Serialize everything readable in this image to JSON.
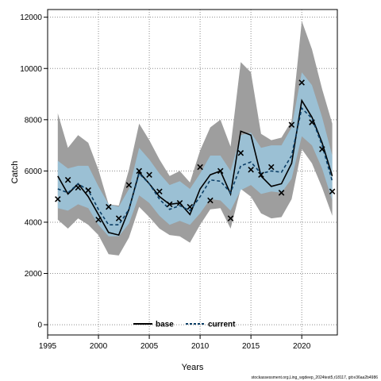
{
  "chart_data": {
    "type": "line",
    "xlabel": "Years",
    "ylabel": "Catch",
    "xlim": [
      1995,
      2023.5
    ],
    "ylim": [
      -400,
      12300
    ],
    "x_ticks": [
      1995,
      2000,
      2005,
      2010,
      2015,
      2020
    ],
    "y_ticks": [
      0,
      2000,
      4000,
      6000,
      8000,
      10000,
      12000
    ],
    "grid": true,
    "legend_position": "bottom-center",
    "years": [
      1996,
      1997,
      1998,
      1999,
      2000,
      2001,
      2002,
      2003,
      2004,
      2005,
      2006,
      2007,
      2008,
      2009,
      2010,
      2011,
      2012,
      2013,
      2014,
      2015,
      2016,
      2017,
      2018,
      2019,
      2020,
      2021,
      2022,
      2023
    ],
    "observed": [
      4900,
      5650,
      5350,
      5250,
      4100,
      4600,
      4150,
      5450,
      6000,
      5850,
      5200,
      4700,
      4750,
      4600,
      6150,
      4850,
      6000,
      4150,
      6700,
      6050,
      5850,
      6150,
      5150,
      7800,
      9450,
      7900,
      6850,
      5200
    ],
    "series": [
      {
        "name": "base",
        "color": "#000000",
        "dash": "solid",
        "band_color": "#9e9e9e",
        "values": [
          5800,
          5100,
          5500,
          5000,
          4300,
          3600,
          3500,
          4500,
          5950,
          5500,
          5000,
          4700,
          4750,
          4300,
          5300,
          5850,
          6000,
          5100,
          7550,
          7400,
          5800,
          5400,
          5500,
          6300,
          8750,
          8100,
          7100,
          5800
        ],
        "lower": [
          4100,
          3750,
          4150,
          3900,
          3500,
          2750,
          2700,
          3400,
          4600,
          4200,
          3750,
          3500,
          3450,
          3200,
          3900,
          4500,
          4550,
          3750,
          5300,
          5000,
          4350,
          4150,
          4200,
          4900,
          6850,
          6300,
          5350,
          4250
        ],
        "upper": [
          8250,
          6900,
          7400,
          7100,
          6050,
          4700,
          4650,
          6050,
          7850,
          7200,
          6450,
          5800,
          6000,
          5550,
          6800,
          7700,
          8000,
          6950,
          10250,
          9850,
          7450,
          7200,
          7300,
          7950,
          11850,
          10750,
          9200,
          7850
        ]
      },
      {
        "name": "current",
        "color": "#0b3e66",
        "dash": "dashed",
        "band_color": "#99cbe6",
        "values": [
          5300,
          5150,
          5500,
          5250,
          4500,
          3900,
          3900,
          4500,
          5900,
          5500,
          4900,
          4500,
          4650,
          4450,
          5000,
          5650,
          5600,
          5150,
          6200,
          6350,
          5900,
          6000,
          5950,
          6600,
          8450,
          8050,
          7000,
          5600
        ],
        "lower": [
          4550,
          4450,
          4700,
          4550,
          3900,
          3450,
          3450,
          3950,
          5050,
          4750,
          4250,
          3900,
          4050,
          3900,
          4350,
          4900,
          4850,
          4450,
          5250,
          5450,
          5100,
          5200,
          5150,
          5700,
          7350,
          7000,
          6100,
          4850
        ],
        "upper": [
          6400,
          6100,
          6200,
          6200,
          5400,
          4700,
          4600,
          5300,
          6900,
          6450,
          5900,
          5450,
          5600,
          5300,
          5900,
          6600,
          6600,
          6000,
          7400,
          7500,
          6900,
          7000,
          7000,
          7700,
          9850,
          9350,
          8100,
          6600
        ]
      }
    ]
  },
  "legend": {
    "items": [
      {
        "label": "base"
      },
      {
        "label": "current"
      }
    ]
  },
  "footer": {
    "text": "stockassessment.org,Ling_wgdeep_2024test5,r18117, git:e36aa2b4986"
  }
}
